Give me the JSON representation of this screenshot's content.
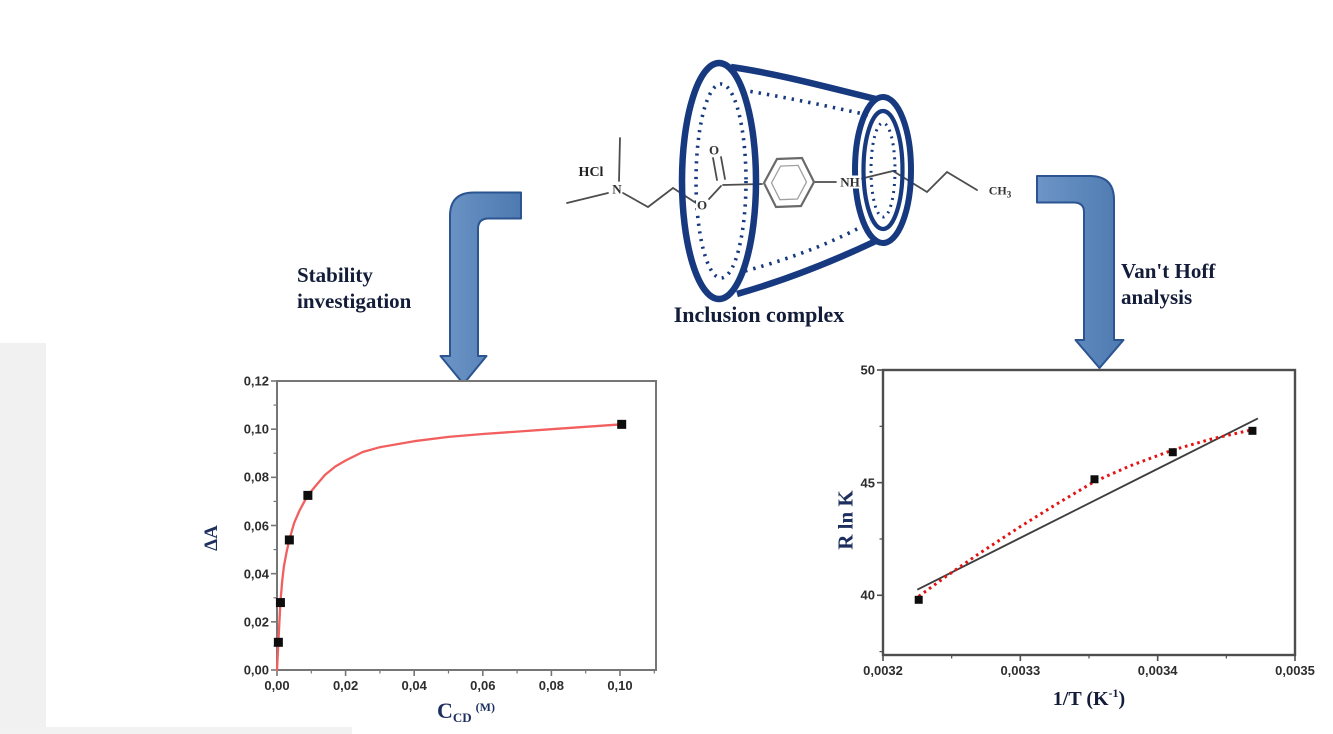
{
  "figure": {
    "inclusion_label": "Inclusion complex",
    "stability_line1": "Stability",
    "stability_line2": "investigation",
    "vanthoff_line1": "Van't Hoff",
    "vanthoff_line2": "analysis"
  },
  "molecule": {
    "hcl": "HCl",
    "amine_n": "N",
    "carbonyl_o": "O",
    "ester_o": "O",
    "nh": "NH",
    "ch": "CH",
    "ch_sub": "3"
  },
  "axis_titles": {
    "left_y": "ΔA",
    "left_x_main": "C",
    "left_x_sub": "CD",
    "left_x_unit": "(M)",
    "right_y": "R ln K",
    "right_x_pre": "1/T (K",
    "right_x_sup": "-1",
    "right_x_post": ")"
  },
  "colors": {
    "cone_navy": "#16397f",
    "arrow_fill": "#5581b8",
    "arrow_fill_light": "#6d95c6",
    "arrow_border": "#2b5491",
    "molecule_line": "#4d4d4d",
    "left_curve_red": "#f25f5f",
    "right_dotted_red": "#e41111",
    "right_line_black": "#3d3d3d",
    "point_black": "#0d0d0d"
  },
  "chart_data": [
    {
      "id": "stability-isotherm",
      "type": "scatter",
      "title": "",
      "xlabel": "C_CD (M)",
      "ylabel": "ΔA",
      "xlim": [
        0,
        0.1105
      ],
      "ylim": [
        0,
        0.12
      ],
      "grid": false,
      "legend": null,
      "frame_color": "#767676",
      "curve_color": "#f25f5f",
      "point_color": "#0d0d0d",
      "x_ticks": [
        {
          "v": 0.0,
          "label": "0,00"
        },
        {
          "v": 0.02,
          "label": "0,02"
        },
        {
          "v": 0.04,
          "label": "0,04"
        },
        {
          "v": 0.06,
          "label": "0,06"
        },
        {
          "v": 0.08,
          "label": "0,08"
        },
        {
          "v": 0.1,
          "label": "0,10"
        }
      ],
      "y_ticks": [
        {
          "v": 0.0,
          "label": "0,00"
        },
        {
          "v": 0.02,
          "label": "0,02"
        },
        {
          "v": 0.04,
          "label": "0,04"
        },
        {
          "v": 0.06,
          "label": "0,06"
        },
        {
          "v": 0.08,
          "label": "0,08"
        },
        {
          "v": 0.1,
          "label": "0,10"
        },
        {
          "v": 0.12,
          "label": "0,12"
        }
      ],
      "x_minor": [
        0.01,
        0.03,
        0.05,
        0.07,
        0.09,
        0.11
      ],
      "y_minor": [
        0.01,
        0.03,
        0.05,
        0.07,
        0.09,
        0.11
      ],
      "points": [
        [
          0.0004,
          0.0115
        ],
        [
          0.001,
          0.028
        ],
        [
          0.0036,
          0.054
        ],
        [
          0.009,
          0.0725
        ],
        [
          0.1005,
          0.102
        ]
      ],
      "fit_curve": [
        [
          0,
          0
        ],
        [
          0.0002,
          0.006
        ],
        [
          0.0004,
          0.0115
        ],
        [
          0.0007,
          0.02
        ],
        [
          0.001,
          0.028
        ],
        [
          0.0015,
          0.0365
        ],
        [
          0.002,
          0.043
        ],
        [
          0.0028,
          0.049
        ],
        [
          0.0036,
          0.054
        ],
        [
          0.005,
          0.061
        ],
        [
          0.0065,
          0.066
        ],
        [
          0.008,
          0.07
        ],
        [
          0.009,
          0.0725
        ],
        [
          0.011,
          0.076
        ],
        [
          0.014,
          0.081
        ],
        [
          0.017,
          0.0845
        ],
        [
          0.02,
          0.087
        ],
        [
          0.025,
          0.0905
        ],
        [
          0.03,
          0.0925
        ],
        [
          0.04,
          0.095
        ],
        [
          0.05,
          0.0968
        ],
        [
          0.06,
          0.098
        ],
        [
          0.07,
          0.099
        ],
        [
          0.08,
          0.1
        ],
        [
          0.09,
          0.101
        ],
        [
          0.1005,
          0.102
        ]
      ]
    },
    {
      "id": "vant-hoff-plot",
      "type": "scatter",
      "title": "",
      "xlabel": "1/T (K^-1)",
      "ylabel": "R ln K",
      "xlim": [
        0.0032,
        0.0035
      ],
      "ylim": [
        37.35,
        50.0
      ],
      "grid": false,
      "legend": null,
      "frame_color": "#4d4d4d",
      "line_color": "#3d3d3d",
      "dotted_color": "#e41111",
      "point_color": "#0d0d0d",
      "x_ticks": [
        {
          "v": 0.0032,
          "label": "0,0032"
        },
        {
          "v": 0.0033,
          "label": "0,0033"
        },
        {
          "v": 0.0034,
          "label": "0,0034"
        },
        {
          "v": 0.0035,
          "label": "0,0035"
        }
      ],
      "y_ticks": [
        {
          "v": 40,
          "label": "40"
        },
        {
          "v": 45,
          "label": "45"
        },
        {
          "v": 50,
          "label": "50"
        }
      ],
      "x_minor": [
        0.00325,
        0.00335,
        0.00345
      ],
      "y_minor": [
        37.5,
        42.5,
        47.5
      ],
      "points": [
        [
          0.003226,
          39.8
        ],
        [
          0.003354,
          45.15
        ],
        [
          0.003411,
          46.35
        ],
        [
          0.003469,
          47.3
        ]
      ],
      "fit_line": [
        [
          0.003225,
          40.25
        ],
        [
          0.003473,
          47.85
        ]
      ],
      "dotted_curve": [
        [
          0.003226,
          39.95
        ],
        [
          0.003245,
          40.8
        ],
        [
          0.00327,
          41.85
        ],
        [
          0.0033,
          43.05
        ],
        [
          0.003325,
          44.0
        ],
        [
          0.003354,
          45.05
        ],
        [
          0.00338,
          45.75
        ],
        [
          0.003411,
          46.45
        ],
        [
          0.00344,
          46.95
        ],
        [
          0.003469,
          47.35
        ]
      ]
    }
  ]
}
